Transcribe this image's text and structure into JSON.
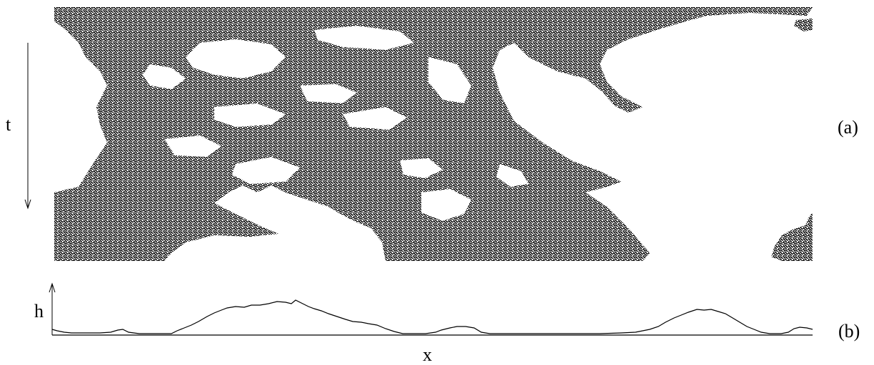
{
  "labels": {
    "time_axis": "t",
    "height_axis": "h",
    "space_axis": "x",
    "panel_a": "(a)",
    "panel_b": "(b)"
  },
  "colors": {
    "ink": "#000000",
    "paper": "#ffffff"
  }
}
